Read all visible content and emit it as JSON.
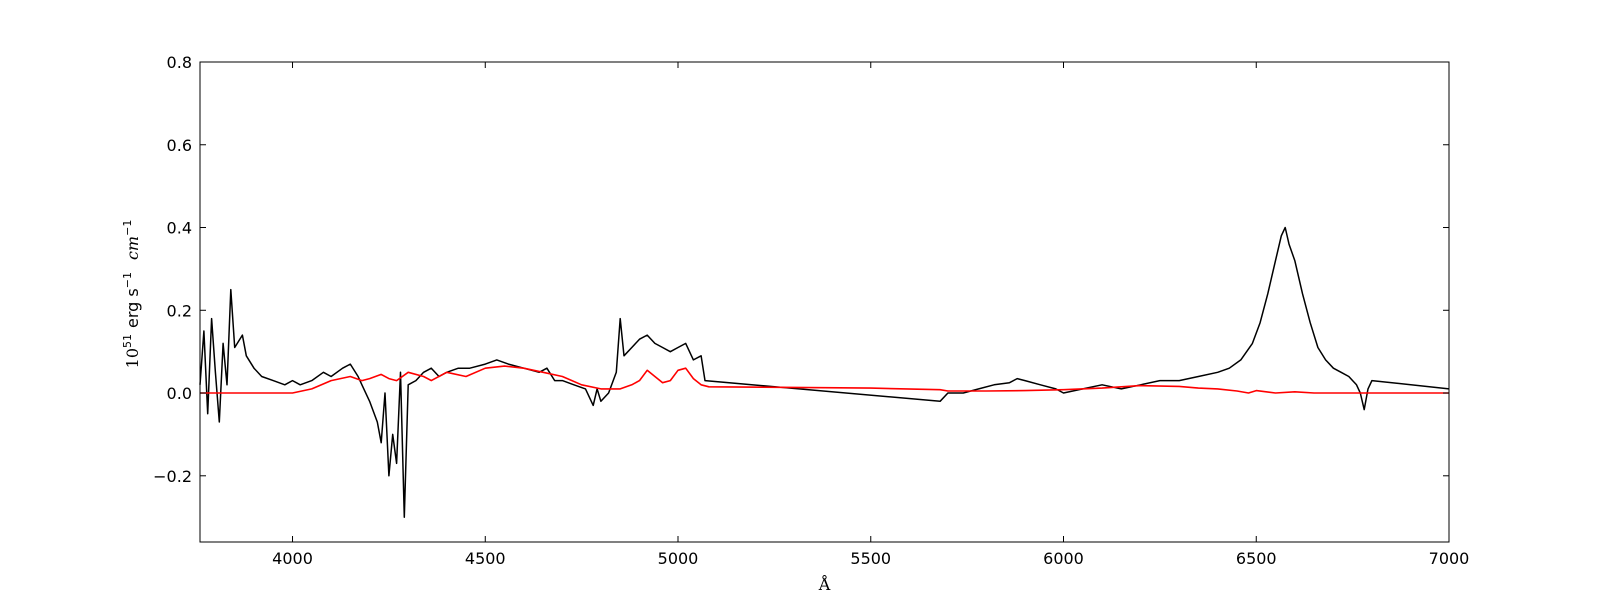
{
  "chart_data": {
    "type": "line",
    "title": "",
    "xlabel": "Å",
    "ylabel": {
      "base": "10",
      "exp": "51",
      "unit": "erg s",
      "unit_exp": "−1",
      "unit2": "cm",
      "unit2_exp": "−1"
    },
    "xlim": [
      3760,
      7000
    ],
    "ylim": [
      -0.36,
      0.8
    ],
    "xticks": [
      4000,
      4500,
      5000,
      5500,
      6000,
      6500,
      7000
    ],
    "yticks": [
      -0.2,
      0.0,
      0.2,
      0.4,
      0.6,
      0.8
    ],
    "ytick_labels": [
      "−0.2",
      "0.0",
      "0.2",
      "0.4",
      "0.6",
      "0.8"
    ],
    "grid": false,
    "legend": "none",
    "series": [
      {
        "color": "#000000",
        "x": [
          3760,
          3770,
          3780,
          3790,
          3800,
          3810,
          3820,
          3830,
          3840,
          3850,
          3870,
          3880,
          3900,
          3920,
          3950,
          3980,
          4000,
          4020,
          4050,
          4080,
          4100,
          4130,
          4150,
          4170,
          4180,
          4200,
          4220,
          4230,
          4240,
          4250,
          4260,
          4270,
          4280,
          4290,
          4300,
          4320,
          4340,
          4360,
          4380,
          4400,
          4430,
          4460,
          4500,
          4530,
          4560,
          4600,
          4640,
          4660,
          4680,
          4700,
          4730,
          4760,
          4780,
          4790,
          4800,
          4820,
          4840,
          4850,
          4860,
          4880,
          4900,
          4920,
          4940,
          4960,
          4980,
          5000,
          5020,
          5040,
          5060,
          5070,
          5680,
          5700,
          5740,
          5780,
          5820,
          5860,
          5880,
          5900,
          5940,
          5980,
          6000,
          6050,
          6100,
          6150,
          6200,
          6250,
          6300,
          6350,
          6400,
          6430,
          6460,
          6490,
          6510,
          6530,
          6550,
          6565,
          6575,
          6585,
          6600,
          6620,
          6640,
          6660,
          6680,
          6700,
          6720,
          6740,
          6760,
          6770,
          6780,
          6790,
          6800,
          7000
        ],
        "y": [
          0.02,
          0.15,
          -0.05,
          0.18,
          0.05,
          -0.07,
          0.12,
          0.02,
          0.25,
          0.11,
          0.14,
          0.09,
          0.06,
          0.04,
          0.03,
          0.02,
          0.03,
          0.02,
          0.03,
          0.05,
          0.04,
          0.06,
          0.07,
          0.04,
          0.02,
          -0.02,
          -0.07,
          -0.12,
          0.0,
          -0.2,
          -0.1,
          -0.17,
          0.05,
          -0.3,
          0.02,
          0.03,
          0.05,
          0.06,
          0.04,
          0.05,
          0.06,
          0.06,
          0.07,
          0.08,
          0.07,
          0.06,
          0.05,
          0.06,
          0.03,
          0.03,
          0.02,
          0.01,
          -0.03,
          0.01,
          -0.02,
          0.0,
          0.05,
          0.18,
          0.09,
          0.11,
          0.13,
          0.14,
          0.12,
          0.11,
          0.1,
          0.11,
          0.12,
          0.08,
          0.09,
          0.03,
          -0.02,
          0.0,
          0.0,
          0.01,
          0.02,
          0.025,
          0.035,
          0.03,
          0.02,
          0.01,
          0.0,
          0.01,
          0.02,
          0.01,
          0.02,
          0.03,
          0.03,
          0.04,
          0.05,
          0.06,
          0.08,
          0.12,
          0.17,
          0.24,
          0.32,
          0.38,
          0.4,
          0.36,
          0.32,
          0.24,
          0.17,
          0.11,
          0.08,
          0.06,
          0.05,
          0.04,
          0.02,
          0.0,
          -0.04,
          0.01,
          0.03,
          0.01
        ]
      },
      {
        "color": "#ff0000",
        "x": [
          3760,
          3900,
          4000,
          4050,
          4100,
          4150,
          4180,
          4200,
          4230,
          4250,
          4270,
          4300,
          4340,
          4360,
          4400,
          4450,
          4500,
          4550,
          4600,
          4650,
          4700,
          4750,
          4800,
          4850,
          4880,
          4900,
          4920,
          4940,
          4960,
          4980,
          5000,
          5020,
          5040,
          5060,
          5080,
          5500,
          5680,
          5700,
          5800,
          5900,
          6000,
          6100,
          6200,
          6300,
          6350,
          6400,
          6450,
          6480,
          6500,
          6550,
          6600,
          6650,
          6700,
          7000
        ],
        "y": [
          0.0,
          0.0,
          0.0,
          0.01,
          0.03,
          0.04,
          0.03,
          0.035,
          0.045,
          0.035,
          0.03,
          0.05,
          0.04,
          0.03,
          0.05,
          0.04,
          0.06,
          0.065,
          0.06,
          0.05,
          0.04,
          0.02,
          0.01,
          0.01,
          0.02,
          0.03,
          0.055,
          0.04,
          0.025,
          0.03,
          0.055,
          0.06,
          0.035,
          0.02,
          0.015,
          0.012,
          0.008,
          0.005,
          0.005,
          0.006,
          0.008,
          0.012,
          0.018,
          0.016,
          0.012,
          0.01,
          0.005,
          0.0,
          0.006,
          0.0,
          0.003,
          0.0,
          0.0,
          0.0
        ]
      }
    ]
  }
}
